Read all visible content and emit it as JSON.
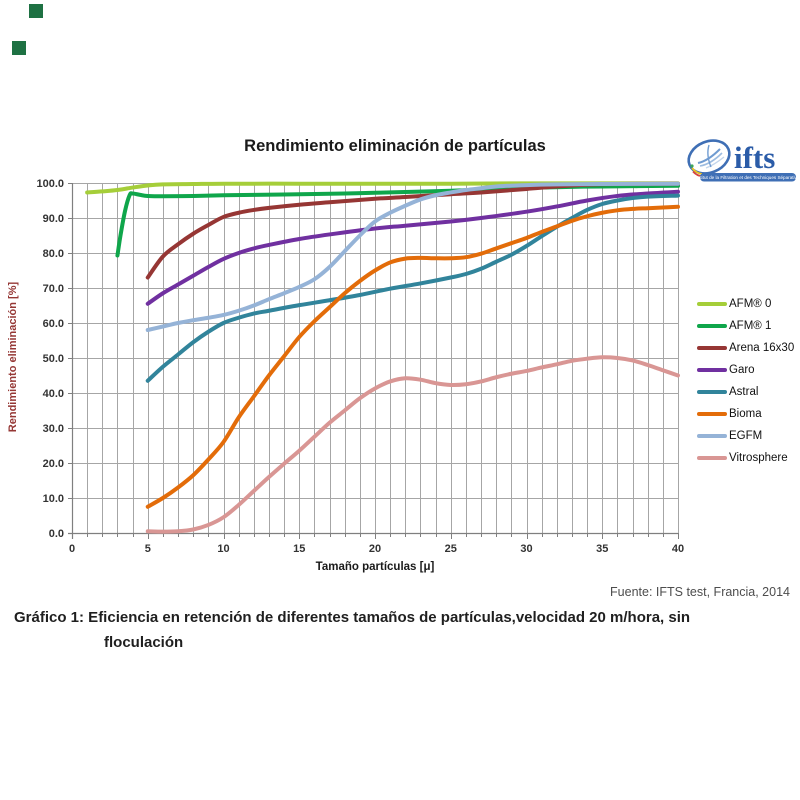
{
  "page": {
    "corner_marks_color": "#1e7143"
  },
  "logo": {
    "text": "ifts",
    "subtitle": "Institut de la Filtration et des Techniques Séparatives"
  },
  "source_note": "Fuente: IFTS test, Francia, 2014",
  "caption": {
    "line1": "Gráfico 1: Eficiencia en retención de diferentes tamaños de partículas,velocidad 20 m/hora, sin",
    "line2": "floculación"
  },
  "chart_data": {
    "type": "line",
    "title": "Rendimiento eliminación de partículas",
    "xlabel": "Tamaño partículas [μ]",
    "ylabel": "Rendimiento eliminación [%]",
    "xlim": [
      0,
      40
    ],
    "ylim": [
      0,
      100
    ],
    "x_major_ticks": [
      0,
      5,
      10,
      15,
      20,
      25,
      30,
      35,
      40
    ],
    "x_minor_step": 1,
    "y_ticks": [
      "0.0",
      "10.0",
      "20.0",
      "30.0",
      "40.0",
      "50.0",
      "60.0",
      "70.0",
      "80.0",
      "90.0",
      "100.0"
    ],
    "grid": "x-minor and y-major, gray lines, white background",
    "legend_position": "right",
    "series": [
      {
        "name": "AFM® 0",
        "color": "#A5CE39",
        "points": [
          [
            1,
            97.3
          ],
          [
            2,
            97.6
          ],
          [
            3,
            98.0
          ],
          [
            4,
            98.7
          ],
          [
            5,
            99.3
          ],
          [
            6,
            99.6
          ],
          [
            8,
            99.7
          ],
          [
            10,
            99.8
          ],
          [
            15,
            99.8
          ],
          [
            20,
            99.8
          ],
          [
            25,
            99.8
          ],
          [
            30,
            99.9
          ],
          [
            35,
            99.9
          ],
          [
            40,
            99.9
          ]
        ]
      },
      {
        "name": "AFM® 1",
        "color": "#0FA64B",
        "points": [
          [
            3,
            79.3
          ],
          [
            3.2,
            85
          ],
          [
            3.5,
            92
          ],
          [
            3.8,
            96.5
          ],
          [
            4,
            97
          ],
          [
            4.5,
            96.6
          ],
          [
            5,
            96.3
          ],
          [
            6,
            96.2
          ],
          [
            8,
            96.3
          ],
          [
            10,
            96.5
          ],
          [
            12,
            96.6
          ],
          [
            15,
            96.8
          ],
          [
            18,
            97
          ],
          [
            20,
            97.2
          ],
          [
            25,
            97.8
          ],
          [
            28,
            98.3
          ],
          [
            30,
            98.6
          ],
          [
            33,
            98.9
          ],
          [
            35,
            99
          ],
          [
            40,
            99.2
          ]
        ]
      },
      {
        "name": "Arena 16x30",
        "color": "#963634",
        "points": [
          [
            5,
            73
          ],
          [
            6,
            79
          ],
          [
            7,
            82.5
          ],
          [
            8,
            85.5
          ],
          [
            9,
            88
          ],
          [
            10,
            90.3
          ],
          [
            11,
            91.5
          ],
          [
            12,
            92.3
          ],
          [
            13,
            92.9
          ],
          [
            15,
            93.8
          ],
          [
            17,
            94.5
          ],
          [
            20,
            95.5
          ],
          [
            22,
            96
          ],
          [
            25,
            96.8
          ],
          [
            27,
            97.3
          ],
          [
            30,
            98.3
          ],
          [
            32,
            99
          ],
          [
            34,
            99.5
          ],
          [
            36,
            99.7
          ],
          [
            40,
            99.8
          ]
        ]
      },
      {
        "name": "Garo",
        "color": "#7030A0",
        "points": [
          [
            5,
            65.5
          ],
          [
            6,
            68.5
          ],
          [
            7,
            71
          ],
          [
            8,
            73.5
          ],
          [
            9,
            76
          ],
          [
            10,
            78.3
          ],
          [
            11,
            80
          ],
          [
            12,
            81.3
          ],
          [
            13,
            82.3
          ],
          [
            15,
            84
          ],
          [
            17,
            85.3
          ],
          [
            20,
            87
          ],
          [
            22,
            87.8
          ],
          [
            25,
            89
          ],
          [
            27,
            90
          ],
          [
            30,
            91.8
          ],
          [
            32,
            93.3
          ],
          [
            34,
            95
          ],
          [
            36,
            96.3
          ],
          [
            38,
            97
          ],
          [
            40,
            97.5
          ]
        ]
      },
      {
        "name": "Astral",
        "color": "#31849B",
        "points": [
          [
            5,
            43.5
          ],
          [
            6,
            47.5
          ],
          [
            7,
            51
          ],
          [
            8,
            54.5
          ],
          [
            9,
            57.5
          ],
          [
            10,
            60
          ],
          [
            11,
            61.5
          ],
          [
            12,
            62.7
          ],
          [
            13,
            63.5
          ],
          [
            15,
            65.1
          ],
          [
            17,
            66.5
          ],
          [
            19,
            68
          ],
          [
            21,
            69.8
          ],
          [
            23,
            71.3
          ],
          [
            25,
            73
          ],
          [
            26,
            74
          ],
          [
            27,
            75.5
          ],
          [
            28,
            77.5
          ],
          [
            29,
            79.5
          ],
          [
            30,
            82
          ],
          [
            31,
            84.8
          ],
          [
            32,
            87.5
          ],
          [
            33,
            90
          ],
          [
            34,
            92.3
          ],
          [
            35,
            94
          ],
          [
            36,
            95
          ],
          [
            37,
            95.7
          ],
          [
            38,
            96.1
          ],
          [
            40,
            96.4
          ]
        ]
      },
      {
        "name": "Bioma",
        "color": "#E36C09",
        "points": [
          [
            5,
            7.5
          ],
          [
            6,
            10
          ],
          [
            7,
            13
          ],
          [
            8,
            16.5
          ],
          [
            9,
            21
          ],
          [
            10,
            26
          ],
          [
            11,
            33
          ],
          [
            12,
            39
          ],
          [
            13,
            45
          ],
          [
            14,
            50.5
          ],
          [
            15,
            56
          ],
          [
            16,
            60.5
          ],
          [
            17,
            64.5
          ],
          [
            18,
            68.5
          ],
          [
            19,
            72
          ],
          [
            20,
            75
          ],
          [
            21,
            77.3
          ],
          [
            22,
            78.4
          ],
          [
            23,
            78.6
          ],
          [
            24,
            78.5
          ],
          [
            25,
            78.5
          ],
          [
            26,
            78.8
          ],
          [
            27,
            79.8
          ],
          [
            28,
            81.3
          ],
          [
            29,
            82.8
          ],
          [
            30,
            84.3
          ],
          [
            31,
            86
          ],
          [
            32,
            87.6
          ],
          [
            33,
            89.2
          ],
          [
            34,
            90.5
          ],
          [
            35,
            91.5
          ],
          [
            36,
            92.2
          ],
          [
            37,
            92.6
          ],
          [
            38,
            92.8
          ],
          [
            39,
            93
          ],
          [
            40,
            93.2
          ]
        ]
      },
      {
        "name": "EGFM",
        "color": "#95B3D7",
        "points": [
          [
            5,
            58
          ],
          [
            6,
            59
          ],
          [
            7,
            60
          ],
          [
            8,
            60.8
          ],
          [
            9,
            61.5
          ],
          [
            10,
            62.3
          ],
          [
            11,
            63.5
          ],
          [
            12,
            65
          ],
          [
            13,
            66.8
          ],
          [
            14,
            68.5
          ],
          [
            15,
            70.3
          ],
          [
            16,
            72.5
          ],
          [
            17,
            76
          ],
          [
            18,
            80.5
          ],
          [
            19,
            85
          ],
          [
            20,
            89
          ],
          [
            21,
            91.5
          ],
          [
            22,
            93.5
          ],
          [
            23,
            95.3
          ],
          [
            24,
            96.5
          ],
          [
            25,
            97.3
          ],
          [
            26,
            98
          ],
          [
            27,
            98.5
          ],
          [
            28,
            99
          ],
          [
            30,
            99.4
          ],
          [
            32,
            99.6
          ],
          [
            35,
            99.7
          ],
          [
            40,
            99.8
          ]
        ]
      },
      {
        "name": "Vitrosphere",
        "color": "#D99694",
        "points": [
          [
            5,
            0.5
          ],
          [
            6,
            0.4
          ],
          [
            7,
            0.5
          ],
          [
            8,
            1
          ],
          [
            9,
            2.3
          ],
          [
            10,
            4.5
          ],
          [
            11,
            8
          ],
          [
            12,
            12
          ],
          [
            13,
            16
          ],
          [
            14,
            19.8
          ],
          [
            15,
            23.5
          ],
          [
            16,
            27.5
          ],
          [
            17,
            31.5
          ],
          [
            18,
            35
          ],
          [
            19,
            38.5
          ],
          [
            20,
            41.3
          ],
          [
            21,
            43.3
          ],
          [
            22,
            44.2
          ],
          [
            23,
            43.8
          ],
          [
            24,
            42.8
          ],
          [
            25,
            42.3
          ],
          [
            26,
            42.5
          ],
          [
            27,
            43.3
          ],
          [
            28,
            44.5
          ],
          [
            29,
            45.5
          ],
          [
            30,
            46.3
          ],
          [
            31,
            47.3
          ],
          [
            32,
            48.2
          ],
          [
            33,
            49.2
          ],
          [
            34,
            49.8
          ],
          [
            35,
            50.2
          ],
          [
            36,
            50
          ],
          [
            37,
            49.3
          ],
          [
            38,
            48
          ],
          [
            39,
            46.5
          ],
          [
            40,
            45
          ]
        ]
      }
    ]
  }
}
